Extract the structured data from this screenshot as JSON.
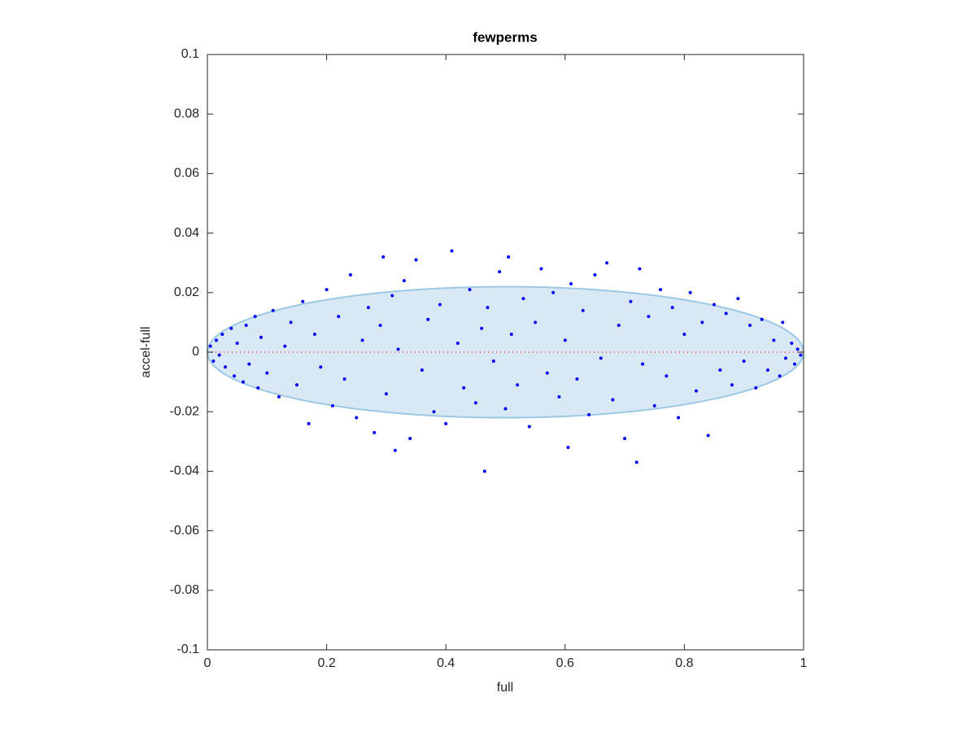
{
  "chart_data": {
    "type": "scatter",
    "title": "fewperms",
    "x_label": "full",
    "y_label": "accel-full",
    "xlim": [
      0,
      1
    ],
    "ylim": [
      -0.1,
      0.1
    ],
    "xticks": [
      0,
      0.2,
      0.4,
      0.6,
      0.8,
      1
    ],
    "yticks": [
      -0.1,
      -0.08,
      -0.06,
      -0.04,
      -0.02,
      0,
      0.02,
      0.04,
      0.06,
      0.08,
      0.1
    ],
    "grid": false,
    "ellipse": {
      "cx": 0.5,
      "cy": 0,
      "rx": 0.5,
      "ry": 0.022,
      "color": "#d8e9f5",
      "edge_color": "#9cc8e6"
    },
    "reference_line": {
      "y": 0,
      "x": [
        0,
        1
      ],
      "color": "#ff3333"
    },
    "series": [
      {
        "color": "#0000ff",
        "x": [
          0.005,
          0.01,
          0.015,
          0.02,
          0.025,
          0.03,
          0.04,
          0.045,
          0.05,
          0.06,
          0.065,
          0.07,
          0.08,
          0.085,
          0.09,
          0.1,
          0.11,
          0.12,
          0.13,
          0.14,
          0.15,
          0.16,
          0.17,
          0.18,
          0.19,
          0.2,
          0.21,
          0.22,
          0.23,
          0.24,
          0.25,
          0.26,
          0.27,
          0.28,
          0.29,
          0.295,
          0.3,
          0.31,
          0.315,
          0.32,
          0.33,
          0.34,
          0.35,
          0.36,
          0.37,
          0.38,
          0.39,
          0.4,
          0.41,
          0.42,
          0.43,
          0.44,
          0.45,
          0.46,
          0.465,
          0.47,
          0.48,
          0.49,
          0.5,
          0.505,
          0.51,
          0.52,
          0.53,
          0.54,
          0.55,
          0.56,
          0.57,
          0.58,
          0.59,
          0.6,
          0.605,
          0.61,
          0.62,
          0.63,
          0.64,
          0.65,
          0.66,
          0.67,
          0.68,
          0.69,
          0.7,
          0.71,
          0.72,
          0.725,
          0.73,
          0.74,
          0.75,
          0.76,
          0.77,
          0.78,
          0.79,
          0.8,
          0.81,
          0.82,
          0.83,
          0.84,
          0.85,
          0.86,
          0.87,
          0.88,
          0.89,
          0.9,
          0.91,
          0.92,
          0.93,
          0.94,
          0.95,
          0.96,
          0.965,
          0.97,
          0.98,
          0.985,
          0.99,
          0.995
        ],
        "values": [
          0.002,
          -0.003,
          0.004,
          -0.001,
          0.006,
          -0.005,
          0.008,
          -0.008,
          0.003,
          -0.01,
          0.009,
          -0.004,
          0.012,
          -0.012,
          0.005,
          -0.007,
          0.014,
          -0.015,
          0.002,
          0.01,
          -0.011,
          0.017,
          -0.024,
          0.006,
          -0.005,
          0.021,
          -0.018,
          0.012,
          -0.009,
          0.026,
          -0.022,
          0.004,
          0.015,
          -0.027,
          0.009,
          0.032,
          -0.014,
          0.019,
          -0.033,
          0.001,
          0.024,
          -0.029,
          0.031,
          -0.006,
          0.011,
          -0.02,
          0.016,
          -0.024,
          0.034,
          0.003,
          -0.012,
          0.021,
          -0.017,
          0.008,
          -0.04,
          0.015,
          -0.003,
          0.027,
          -0.019,
          0.032,
          0.006,
          -0.011,
          0.018,
          -0.025,
          0.01,
          0.028,
          -0.007,
          0.02,
          -0.015,
          0.004,
          -0.032,
          0.023,
          -0.009,
          0.014,
          -0.021,
          0.026,
          -0.002,
          0.03,
          -0.016,
          0.009,
          -0.029,
          0.017,
          -0.037,
          0.028,
          -0.004,
          0.012,
          -0.018,
          0.021,
          -0.008,
          0.015,
          -0.022,
          0.006,
          0.02,
          -0.013,
          0.01,
          -0.028,
          0.016,
          -0.006,
          0.013,
          -0.011,
          0.018,
          -0.003,
          0.009,
          -0.012,
          0.011,
          -0.006,
          0.004,
          -0.008,
          0.01,
          -0.002,
          0.003,
          -0.004,
          0.001,
          -0.001
        ]
      }
    ]
  }
}
